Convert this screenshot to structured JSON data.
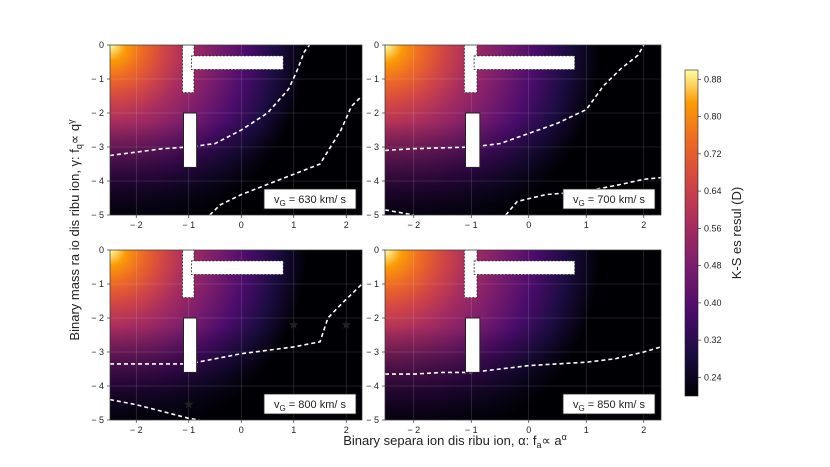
{
  "chart_data": {
    "type": "heatmap",
    "xlabel": "Binary separa ion dis ribu ion, α: f",
    "xlabel_sub": "a",
    "xlabel_tail": "∝ a",
    "xlabel_sup": "α",
    "ylabel": "Binary mass ra io dis ribu ion, γ: f",
    "ylabel_sub": "q",
    "ylabel_tail": "∝ q",
    "ylabel_sup": "γ",
    "colorbar_label": "K-S  es  resul  (D)",
    "colorbar_ticks": [
      "0.24",
      "0.32",
      "0.40",
      "0.48",
      "0.56",
      "0.64",
      "0.72",
      "0.80",
      "0.88"
    ],
    "colorbar_values": [
      0.24,
      0.32,
      0.4,
      0.48,
      0.56,
      0.64,
      0.72,
      0.8,
      0.88
    ],
    "colorbar_range": [
      0.2,
      0.9
    ],
    "xlim": [
      -2.5,
      2.3
    ],
    "ylim": [
      -5,
      0
    ],
    "xticks": [
      -2,
      -1,
      0,
      1,
      2
    ],
    "xtick_labels": [
      "− 2",
      "− 1",
      "0",
      "1",
      "2"
    ],
    "yticks": [
      0,
      -1,
      -2,
      -3,
      -4,
      -5
    ],
    "ytick_labels": [
      "0",
      "− 1",
      "− 2",
      "− 3",
      "− 4",
      "− 5"
    ],
    "panels": [
      {
        "label": "v",
        "label_sub": "G",
        "label_value": " = 630 km/ s",
        "contour": [
          [
            -2.5,
            -3.25
          ],
          [
            -2.0,
            -3.15
          ],
          [
            -1.5,
            -3.05
          ],
          [
            -1.0,
            -3.0
          ],
          [
            -0.5,
            -2.9
          ],
          [
            0.0,
            -2.5
          ],
          [
            0.5,
            -2.0
          ],
          [
            0.9,
            -1.3
          ],
          [
            1.05,
            -0.8
          ],
          [
            1.2,
            -0.2
          ],
          [
            1.3,
            0.0
          ]
        ],
        "contour2": [
          [
            -0.6,
            -5.0
          ],
          [
            -0.4,
            -4.7
          ],
          [
            0.0,
            -4.4
          ],
          [
            0.5,
            -4.1
          ],
          [
            1.0,
            -3.8
          ],
          [
            1.5,
            -3.5
          ],
          [
            1.9,
            -2.5
          ],
          [
            2.1,
            -1.8
          ],
          [
            2.3,
            -1.5
          ]
        ],
        "stars": []
      },
      {
        "label": "v",
        "label_sub": "G",
        "label_value": " = 700 km/ s",
        "contour": [
          [
            -2.5,
            -3.1
          ],
          [
            -2.0,
            -3.05
          ],
          [
            -1.0,
            -3.0
          ],
          [
            -0.5,
            -2.9
          ],
          [
            0.0,
            -2.6
          ],
          [
            0.5,
            -2.3
          ],
          [
            1.0,
            -1.9
          ],
          [
            1.3,
            -1.2
          ],
          [
            1.6,
            -0.7
          ],
          [
            1.9,
            -0.3
          ],
          [
            2.0,
            0.0
          ]
        ],
        "contour2": [
          [
            -2.5,
            -4.85
          ],
          [
            -2.0,
            -5.0
          ]
        ],
        "contour3": [
          [
            -0.4,
            -5.0
          ],
          [
            -0.2,
            -4.6
          ],
          [
            0.3,
            -4.4
          ],
          [
            1.0,
            -4.3
          ],
          [
            1.6,
            -4.1
          ],
          [
            2.0,
            -3.95
          ],
          [
            2.3,
            -3.9
          ]
        ],
        "stars": []
      },
      {
        "label": "v",
        "label_sub": "G",
        "label_value": " = 800 km/ s",
        "contour": [
          [
            -2.5,
            -3.35
          ],
          [
            -2.0,
            -3.35
          ],
          [
            -1.5,
            -3.35
          ],
          [
            -1.0,
            -3.35
          ],
          [
            -0.5,
            -3.2
          ],
          [
            0.0,
            -3.05
          ],
          [
            0.5,
            -2.95
          ],
          [
            1.0,
            -2.85
          ],
          [
            1.5,
            -2.7
          ],
          [
            1.65,
            -2.0
          ],
          [
            1.9,
            -1.6
          ],
          [
            2.1,
            -1.3
          ],
          [
            2.3,
            -1.0
          ]
        ],
        "contour2": [
          [
            -2.5,
            -4.4
          ],
          [
            -2.0,
            -4.55
          ],
          [
            -1.5,
            -4.75
          ],
          [
            -1.0,
            -4.95
          ],
          [
            -0.8,
            -5.0
          ]
        ],
        "stars": [
          [
            1.0,
            -2.2
          ],
          [
            2.0,
            -2.2
          ],
          [
            -1.0,
            -4.55
          ]
        ]
      },
      {
        "label": "v",
        "label_sub": "G",
        "label_value": " = 850 km/ s",
        "contour": [
          [
            -2.5,
            -3.65
          ],
          [
            -2.0,
            -3.65
          ],
          [
            -1.5,
            -3.6
          ],
          [
            -1.0,
            -3.6
          ],
          [
            -0.5,
            -3.5
          ],
          [
            0.0,
            -3.4
          ],
          [
            0.5,
            -3.35
          ],
          [
            1.0,
            -3.3
          ],
          [
            1.5,
            -3.2
          ],
          [
            2.0,
            -3.0
          ],
          [
            2.3,
            -2.85
          ]
        ],
        "stars": []
      }
    ],
    "grid": true
  }
}
